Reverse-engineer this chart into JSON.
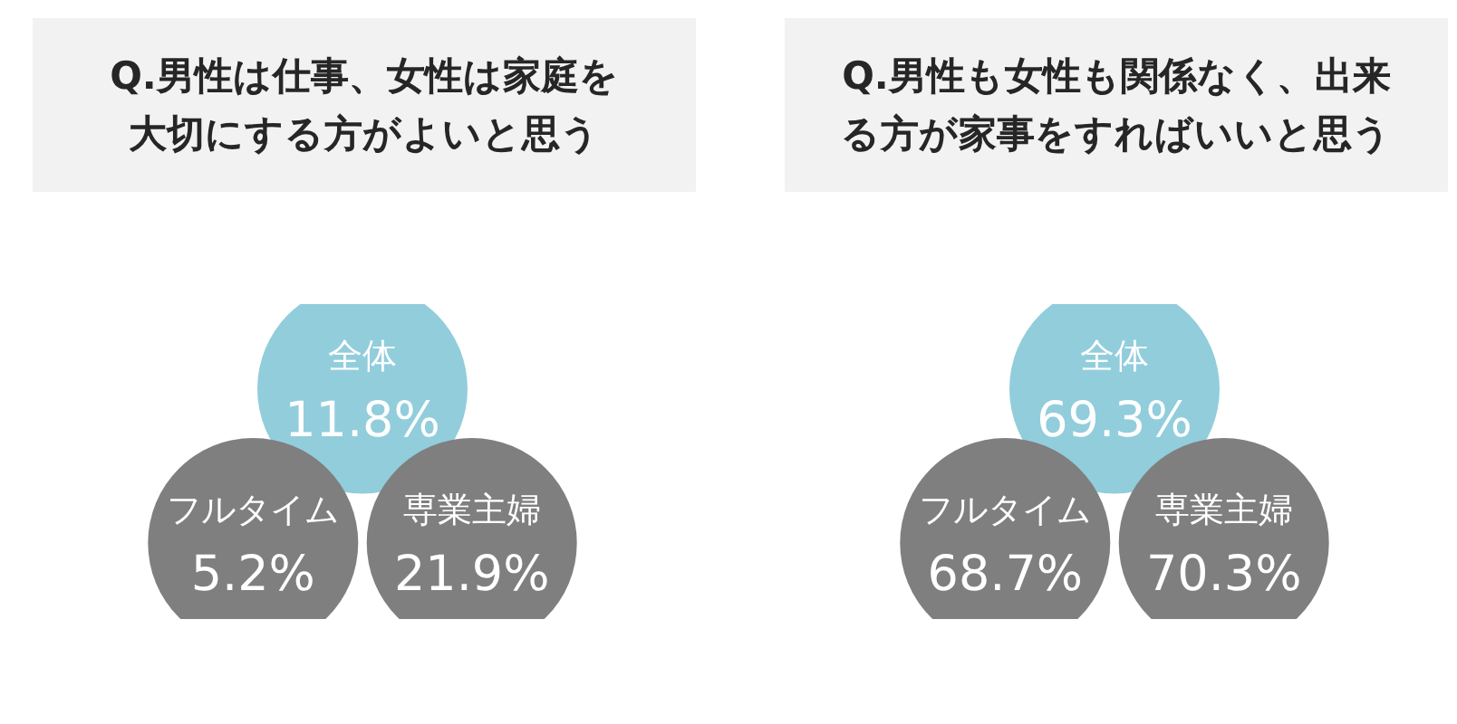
{
  "chart_data": [
    {
      "type": "other",
      "title": "Q.男性は仕事、女性は家庭を大切にする方がよいと思う",
      "categories": [
        "全体",
        "フルタイム",
        "専業主婦"
      ],
      "values": [
        11.8,
        5.2,
        21.9
      ],
      "value_labels": [
        "11.8%",
        "5.2%",
        "21.9%"
      ],
      "colors": [
        "#92cddc",
        "#7f7f7f",
        "#7f7f7f"
      ]
    },
    {
      "type": "other",
      "title": "Q.男性も女性も関係なく、出来る方が家事をすればいいと思う",
      "categories": [
        "全体",
        "フルタイム",
        "専業主婦"
      ],
      "values": [
        69.3,
        68.7,
        70.3
      ],
      "value_labels": [
        "69.3%",
        "68.7%",
        "70.3%"
      ],
      "colors": [
        "#92cddc",
        "#7f7f7f",
        "#7f7f7f"
      ]
    }
  ]
}
